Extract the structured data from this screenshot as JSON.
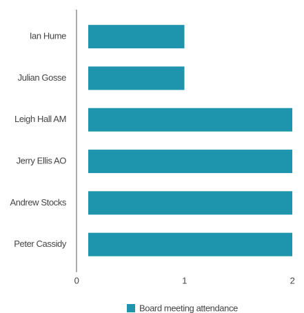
{
  "chart_data": {
    "type": "bar",
    "orientation": "horizontal",
    "categories": [
      "Ian Hume",
      "Julian Gosse",
      "Leigh Hall AM",
      "Jerry Ellis AO",
      "Andrew Stocks",
      "Peter Cassidy"
    ],
    "series": [
      {
        "name": "Board meeting attendance",
        "color": "#1f95ad",
        "values": [
          1,
          1,
          2,
          2,
          2,
          2
        ]
      }
    ],
    "xlim": [
      0,
      2
    ],
    "xticks": [
      0,
      1,
      2
    ],
    "legend": "bottom"
  }
}
